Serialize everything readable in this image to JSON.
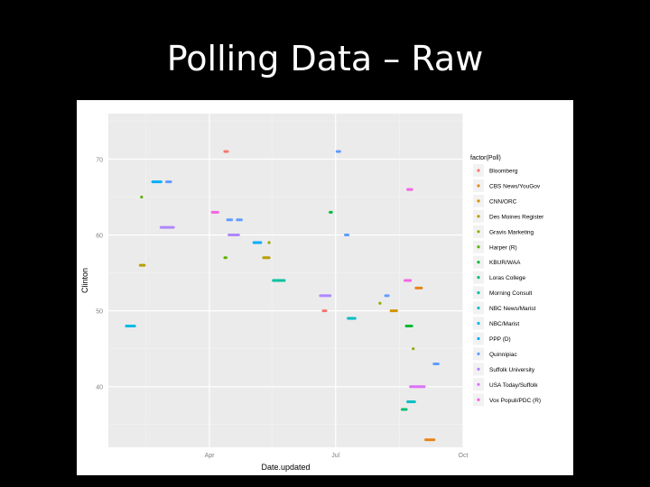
{
  "slide": {
    "title": "Polling Data – Raw"
  },
  "chart_data": {
    "type": "scatter",
    "xlabel": "Date.updated",
    "ylabel": "Clinton",
    "x_ticks": [
      "Apr",
      "Jul",
      "Oct"
    ],
    "y_ticks": [
      40,
      50,
      60,
      70
    ],
    "xlim": [
      "2016-01-19",
      "2016-10-01"
    ],
    "ylim": [
      32,
      76
    ],
    "grid": true,
    "legend": {
      "title": "factor(Poll)",
      "placement": "right"
    },
    "series": [
      {
        "name": "Bloomberg",
        "color": "#F8766D",
        "points": [
          {
            "start": "2016-04-12",
            "end": "2016-04-14",
            "y": 71
          },
          {
            "start": "2016-06-22",
            "end": "2016-06-24",
            "y": 50
          }
        ]
      },
      {
        "name": "CBS News/YouGov",
        "color": "#E7861B",
        "points": [
          {
            "start": "2016-08-28",
            "end": "2016-09-01",
            "y": 53
          },
          {
            "start": "2016-09-04",
            "end": "2016-09-10",
            "y": 33
          }
        ]
      },
      {
        "name": "CNN/ORC",
        "color": "#D39200",
        "points": [
          {
            "start": "2016-08-10",
            "end": "2016-08-14",
            "y": 50
          }
        ]
      },
      {
        "name": "Des Moines Register",
        "color": "#B79F00",
        "points": [
          {
            "start": "2016-02-11",
            "end": "2016-02-14",
            "y": 56
          },
          {
            "start": "2016-05-10",
            "end": "2016-05-14",
            "y": 57
          }
        ]
      },
      {
        "name": "Gravis Marketing",
        "color": "#93AA00",
        "points": [
          {
            "start": "2016-05-14",
            "end": "2016-05-14",
            "y": 59
          },
          {
            "start": "2016-08-02",
            "end": "2016-08-02",
            "y": 51
          },
          {
            "start": "2016-08-26",
            "end": "2016-08-26",
            "y": 45
          }
        ]
      },
      {
        "name": "Harper (R)",
        "color": "#5EB300",
        "points": [
          {
            "start": "2016-02-12",
            "end": "2016-02-12",
            "y": 65
          },
          {
            "start": "2016-04-12",
            "end": "2016-04-13",
            "y": 57
          }
        ]
      },
      {
        "name": "KBUR/WAA",
        "color": "#00BA38",
        "points": [
          {
            "start": "2016-06-27",
            "end": "2016-06-28",
            "y": 63
          },
          {
            "start": "2016-08-21",
            "end": "2016-08-25",
            "y": 48
          }
        ]
      },
      {
        "name": "Loras College",
        "color": "#00BF74",
        "points": [
          {
            "start": "2016-08-18",
            "end": "2016-08-21",
            "y": 37
          }
        ]
      },
      {
        "name": "Morning Consult",
        "color": "#00C19F",
        "points": [
          {
            "start": "2016-05-17",
            "end": "2016-05-25",
            "y": 54
          }
        ]
      },
      {
        "name": "NBC News/Marist",
        "color": "#00BFC4",
        "points": [
          {
            "start": "2016-07-10",
            "end": "2016-07-15",
            "y": 49
          },
          {
            "start": "2016-08-22",
            "end": "2016-08-27",
            "y": 38
          }
        ]
      },
      {
        "name": "NBC/Marist",
        "color": "#00B9E3",
        "points": [
          {
            "start": "2016-02-01",
            "end": "2016-02-07",
            "y": 48
          }
        ]
      },
      {
        "name": "PPP (D)",
        "color": "#00ADFA",
        "points": [
          {
            "start": "2016-02-20",
            "end": "2016-02-26",
            "y": 67
          },
          {
            "start": "2016-05-03",
            "end": "2016-05-08",
            "y": 59
          }
        ]
      },
      {
        "name": "Quinnipiac",
        "color": "#619CFF",
        "points": [
          {
            "start": "2016-03-01",
            "end": "2016-03-04",
            "y": 67
          },
          {
            "start": "2016-04-14",
            "end": "2016-04-17",
            "y": 62
          },
          {
            "start": "2016-04-21",
            "end": "2016-04-24",
            "y": 62
          },
          {
            "start": "2016-07-02",
            "end": "2016-07-04",
            "y": 71
          },
          {
            "start": "2016-07-08",
            "end": "2016-07-10",
            "y": 60
          },
          {
            "start": "2016-08-06",
            "end": "2016-08-08",
            "y": 52
          },
          {
            "start": "2016-09-10",
            "end": "2016-09-13",
            "y": 43
          }
        ]
      },
      {
        "name": "Suffolk University",
        "color": "#AE87FF",
        "points": [
          {
            "start": "2016-02-26",
            "end": "2016-03-06",
            "y": 61
          },
          {
            "start": "2016-04-15",
            "end": "2016-04-22",
            "y": 60
          },
          {
            "start": "2016-06-20",
            "end": "2016-06-27",
            "y": 52
          }
        ]
      },
      {
        "name": "USA Today/Suffolk",
        "color": "#DB72FB",
        "points": [
          {
            "start": "2016-08-24",
            "end": "2016-09-03",
            "y": 40
          }
        ]
      },
      {
        "name": "Vox Populi/PDC (R)",
        "color": "#F564E3",
        "points": [
          {
            "start": "2016-04-03",
            "end": "2016-04-07",
            "y": 63
          },
          {
            "start": "2016-08-20",
            "end": "2016-08-24",
            "y": 54
          },
          {
            "start": "2016-08-22",
            "end": "2016-08-25",
            "y": 66
          }
        ]
      }
    ]
  }
}
